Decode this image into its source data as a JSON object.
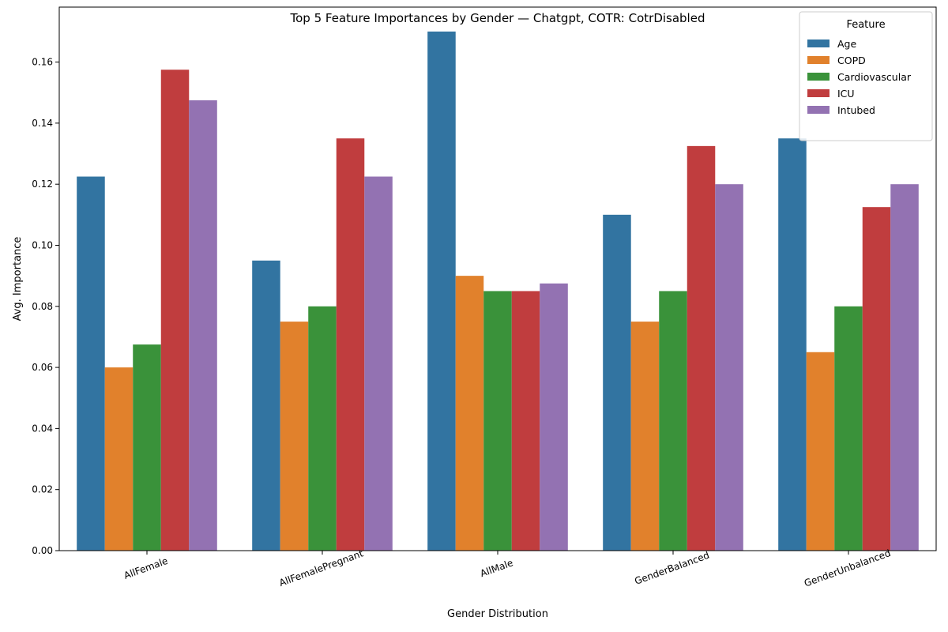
{
  "chart_data": {
    "type": "bar",
    "title": "Top 5 Feature Importances by Gender — Chatgpt, COTR: CotrDisabled",
    "xlabel": "Gender Distribution",
    "ylabel": "Avg. Importance",
    "ylim": [
      0,
      0.178
    ],
    "yticks": [
      "0.00",
      "0.02",
      "0.04",
      "0.06",
      "0.08",
      "0.10",
      "0.12",
      "0.14",
      "0.16"
    ],
    "categories": [
      "AllFemale",
      "AllFemalePregnant",
      "AllMale",
      "GenderBalanced",
      "GenderUnbalanced"
    ],
    "legend_title": "Feature",
    "legend_position": "top-right",
    "grid": false,
    "series": [
      {
        "name": "Age",
        "color": "#3274a1",
        "values": [
          0.1225,
          0.095,
          0.17,
          0.11,
          0.135
        ]
      },
      {
        "name": "COPD",
        "color": "#e1812c",
        "values": [
          0.06,
          0.075,
          0.09,
          0.075,
          0.065
        ]
      },
      {
        "name": "Cardiovascular",
        "color": "#3a923a",
        "values": [
          0.0675,
          0.08,
          0.085,
          0.085,
          0.08
        ]
      },
      {
        "name": "ICU",
        "color": "#c03d3e",
        "values": [
          0.1575,
          0.135,
          0.085,
          0.1325,
          0.1125
        ]
      },
      {
        "name": "Intubed",
        "color": "#9372b2",
        "values": [
          0.1475,
          0.1225,
          0.0875,
          0.12,
          0.12
        ]
      }
    ]
  }
}
